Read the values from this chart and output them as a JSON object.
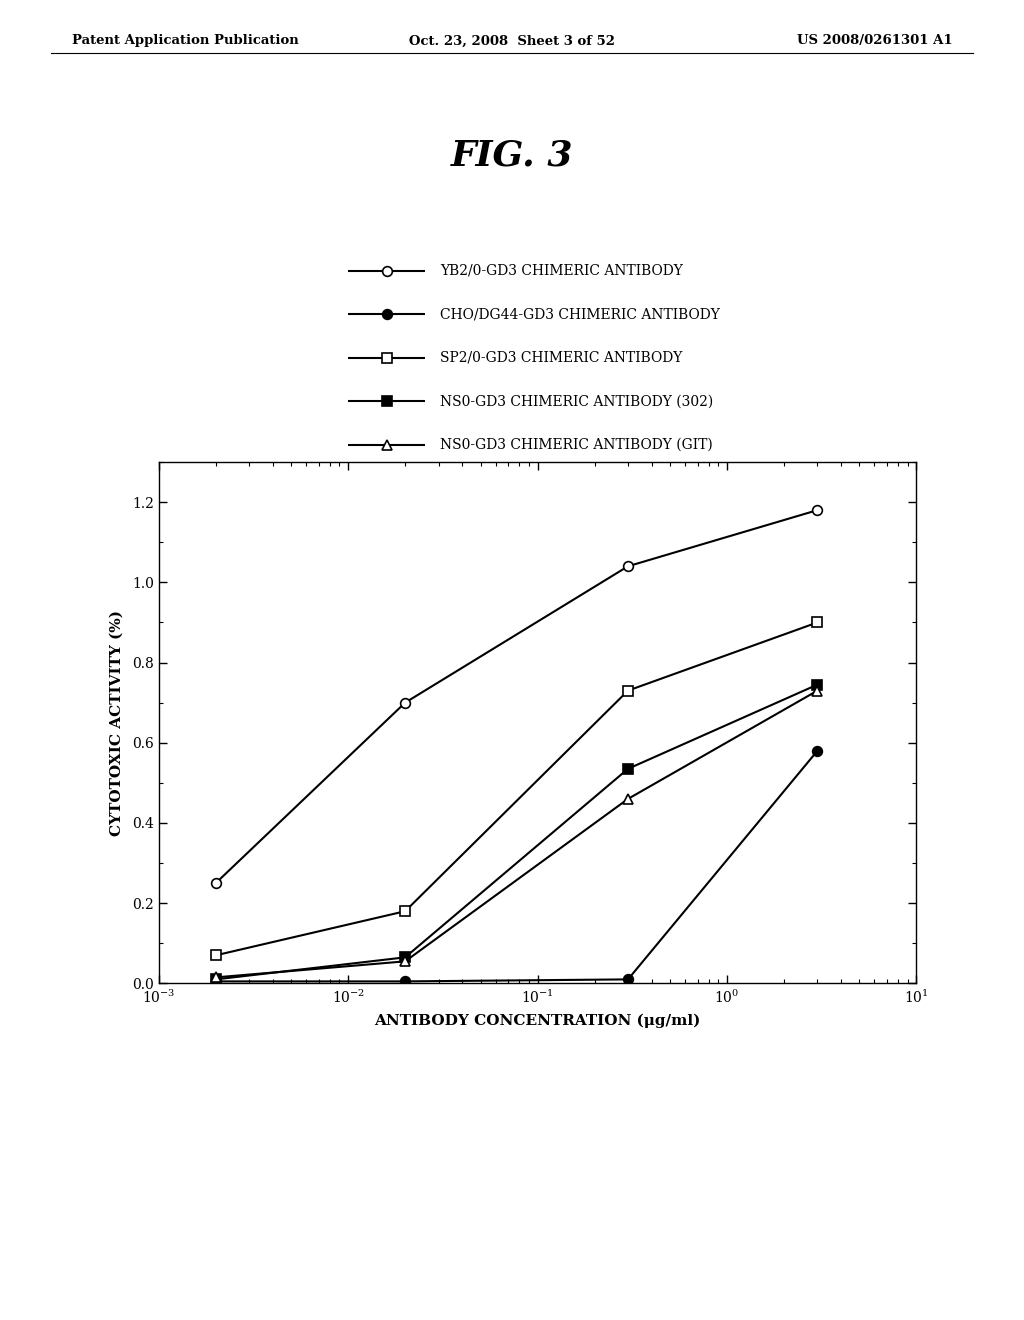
{
  "title": "FIG. 3",
  "xlabel": "ANTIBODY CONCENTRATION (μg/ml)",
  "ylabel": "CYTOTOXIC ACTIVITY (%)",
  "header_left": "Patent Application Publication",
  "header_center": "Oct. 23, 2008  Sheet 3 of 52",
  "header_right": "US 2008/0261301 A1",
  "series": [
    {
      "label": "YB2/0-GD3 CHIMERIC ANTIBODY",
      "x": [
        0.002,
        0.02,
        0.3,
        3.0
      ],
      "y": [
        0.25,
        0.7,
        1.04,
        1.18
      ],
      "marker": "o",
      "fillstyle": "none",
      "color": "black",
      "linewidth": 1.5
    },
    {
      "label": "CHO/DG44-GD3 CHIMERIC ANTIBODY",
      "x": [
        0.002,
        0.02,
        0.3,
        3.0
      ],
      "y": [
        0.005,
        0.005,
        0.01,
        0.58
      ],
      "marker": "o",
      "fillstyle": "full",
      "color": "black",
      "linewidth": 1.5
    },
    {
      "label": "SP2/0-GD3 CHIMERIC ANTIBODY",
      "x": [
        0.002,
        0.02,
        0.3,
        3.0
      ],
      "y": [
        0.07,
        0.18,
        0.73,
        0.9
      ],
      "marker": "s",
      "fillstyle": "none",
      "color": "black",
      "linewidth": 1.5
    },
    {
      "label": "NS0-GD3 CHIMERIC ANTIBODY (302)",
      "x": [
        0.002,
        0.02,
        0.3,
        3.0
      ],
      "y": [
        0.01,
        0.065,
        0.535,
        0.745
      ],
      "marker": "s",
      "fillstyle": "full",
      "color": "black",
      "linewidth": 1.5
    },
    {
      "label": "NS0-GD3 CHIMERIC ANTIBODY (GIT)",
      "x": [
        0.002,
        0.02,
        0.3,
        3.0
      ],
      "y": [
        0.015,
        0.055,
        0.46,
        0.73
      ],
      "marker": "^",
      "fillstyle": "none",
      "color": "black",
      "linewidth": 1.5
    }
  ],
  "xlim": [
    0.001,
    10
  ],
  "ylim": [
    0.0,
    1.3
  ],
  "yticks": [
    0.0,
    0.2,
    0.4,
    0.6,
    0.8,
    1.0,
    1.2
  ],
  "background_color": "white",
  "fig_title_fontsize": 26,
  "axis_label_fontsize": 11,
  "tick_label_fontsize": 10,
  "legend_fontsize": 10,
  "header_fontsize": 9.5
}
